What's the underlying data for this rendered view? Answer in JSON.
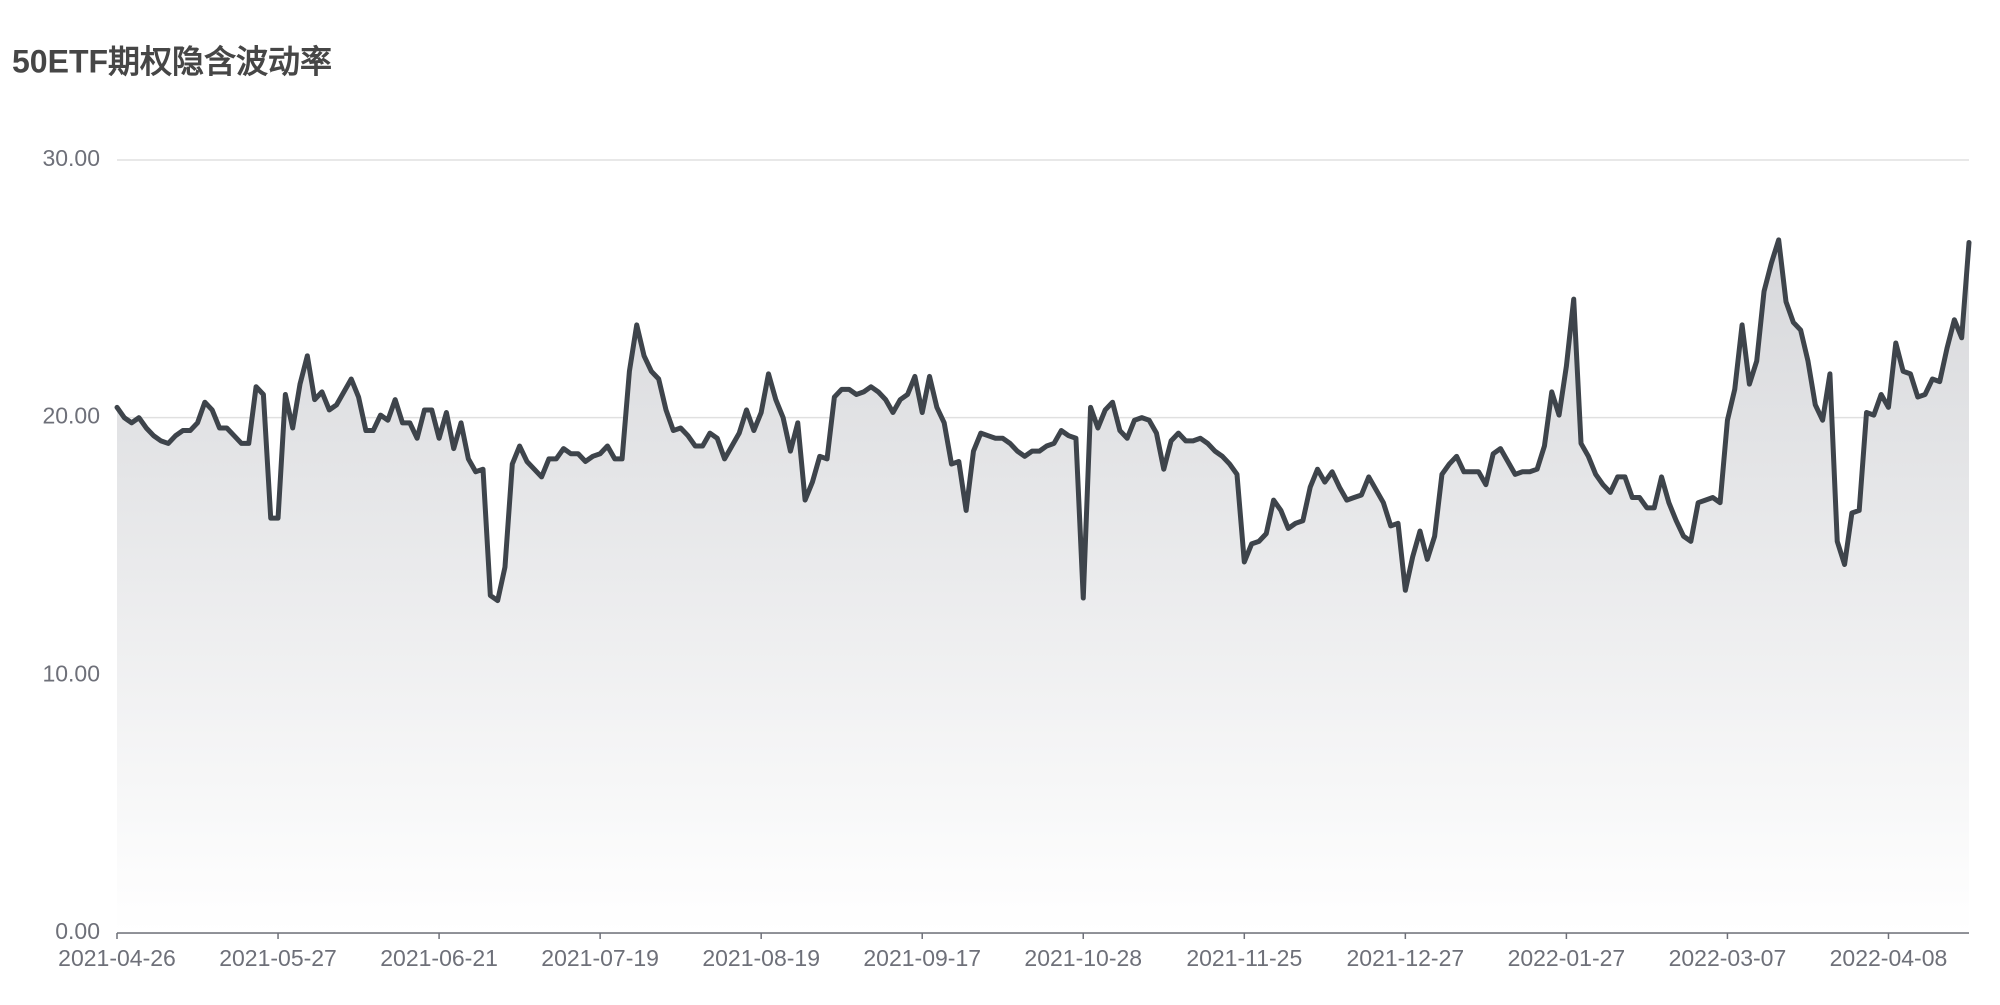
{
  "chart_data": {
    "type": "line",
    "title": "50ETF期权隐含波动率",
    "color": "#3e444b",
    "area": true,
    "grid": true,
    "ylim": [
      0,
      30
    ],
    "yticks": [
      {
        "value": 0,
        "label": "0.00"
      },
      {
        "value": 10,
        "label": "10.00"
      },
      {
        "value": 20,
        "label": "20.00"
      },
      {
        "value": 30,
        "label": "30.00"
      }
    ],
    "categories": [
      "2021-04-26",
      null,
      null,
      null,
      null,
      null,
      null,
      null,
      null,
      null,
      null,
      null,
      null,
      null,
      null,
      null,
      null,
      null,
      null,
      null,
      null,
      null,
      "2021-05-27",
      null,
      null,
      null,
      null,
      null,
      null,
      null,
      null,
      null,
      null,
      null,
      null,
      null,
      null,
      null,
      null,
      null,
      null,
      null,
      null,
      null,
      "2021-06-21",
      null,
      null,
      null,
      null,
      null,
      null,
      null,
      null,
      null,
      null,
      null,
      null,
      null,
      null,
      null,
      null,
      null,
      null,
      null,
      null,
      null,
      "2021-07-19",
      null,
      null,
      null,
      null,
      null,
      null,
      null,
      null,
      null,
      null,
      null,
      null,
      null,
      null,
      null,
      null,
      null,
      null,
      null,
      null,
      null,
      "2021-08-19",
      null,
      null,
      null,
      null,
      null,
      null,
      null,
      null,
      null,
      null,
      null,
      null,
      null,
      null,
      null,
      null,
      null,
      null,
      null,
      null,
      null,
      "2021-09-17",
      null,
      null,
      null,
      null,
      null,
      null,
      null,
      null,
      null,
      null,
      null,
      null,
      null,
      null,
      null,
      null,
      null,
      null,
      null,
      null,
      null,
      "2021-10-28",
      null,
      null,
      null,
      null,
      null,
      null,
      null,
      null,
      null,
      null,
      null,
      null,
      null,
      null,
      null,
      null,
      null,
      null,
      null,
      null,
      null,
      "2021-11-25",
      null,
      null,
      null,
      null,
      null,
      null,
      null,
      null,
      null,
      null,
      null,
      null,
      null,
      null,
      null,
      null,
      null,
      null,
      null,
      null,
      null,
      "2021-12-27",
      null,
      null,
      null,
      null,
      null,
      null,
      null,
      null,
      null,
      null,
      null,
      null,
      null,
      null,
      null,
      null,
      null,
      null,
      null,
      null,
      null,
      "2022-01-27",
      null,
      null,
      null,
      null,
      null,
      null,
      null,
      null,
      null,
      null,
      null,
      null,
      null,
      null,
      null,
      null,
      null,
      null,
      null,
      null,
      null,
      "2022-03-07",
      null,
      null,
      null,
      null,
      null,
      null,
      null,
      null,
      null,
      null,
      null,
      null,
      null,
      null,
      null,
      null,
      null,
      null,
      null,
      null,
      null,
      "2022-04-08",
      null,
      null,
      null,
      null,
      null,
      null,
      null,
      null,
      null,
      null,
      null
    ],
    "values": [
      20.4,
      20.0,
      19.8,
      20.0,
      19.6,
      19.3,
      19.1,
      19.0,
      19.3,
      19.5,
      19.5,
      19.8,
      20.6,
      20.3,
      19.6,
      19.6,
      19.3,
      19.0,
      19.0,
      21.2,
      20.9,
      16.1,
      16.1,
      20.9,
      19.6,
      21.3,
      22.4,
      20.7,
      21.0,
      20.3,
      20.5,
      21.0,
      21.5,
      20.8,
      19.5,
      19.5,
      20.1,
      19.9,
      20.7,
      19.8,
      19.8,
      19.2,
      20.3,
      20.3,
      19.2,
      20.2,
      18.8,
      19.8,
      18.4,
      17.9,
      18.0,
      13.1,
      12.9,
      14.2,
      18.2,
      18.9,
      18.3,
      18.0,
      17.7,
      18.4,
      18.4,
      18.8,
      18.6,
      18.6,
      18.3,
      18.5,
      18.6,
      18.9,
      18.4,
      18.4,
      21.8,
      23.6,
      22.4,
      21.8,
      21.5,
      20.3,
      19.5,
      19.6,
      19.3,
      18.9,
      18.9,
      19.4,
      19.2,
      18.4,
      18.9,
      19.4,
      20.3,
      19.5,
      20.2,
      21.7,
      20.7,
      20.0,
      18.7,
      19.8,
      16.8,
      17.5,
      18.5,
      18.4,
      20.8,
      21.1,
      21.1,
      20.9,
      21.0,
      21.2,
      21.0,
      20.7,
      20.2,
      20.7,
      20.9,
      21.6,
      20.2,
      21.6,
      20.4,
      19.8,
      18.2,
      18.3,
      16.4,
      18.7,
      19.4,
      19.3,
      19.2,
      19.2,
      19.0,
      18.7,
      18.5,
      18.7,
      18.7,
      18.9,
      19.0,
      19.5,
      19.3,
      19.2,
      13.0,
      20.4,
      19.6,
      20.3,
      20.6,
      19.5,
      19.2,
      19.9,
      20.0,
      19.9,
      19.4,
      18.0,
      19.1,
      19.4,
      19.1,
      19.1,
      19.2,
      19.0,
      18.7,
      18.5,
      18.2,
      17.8,
      14.4,
      15.1,
      15.2,
      15.5,
      16.8,
      16.4,
      15.7,
      15.9,
      16.0,
      17.3,
      18.0,
      17.5,
      17.9,
      17.3,
      16.8,
      16.9,
      17.0,
      17.7,
      17.2,
      16.7,
      15.8,
      15.9,
      13.3,
      14.6,
      15.6,
      14.5,
      15.4,
      17.8,
      18.2,
      18.5,
      17.9,
      17.9,
      17.9,
      17.4,
      18.6,
      18.8,
      18.3,
      17.8,
      17.9,
      17.9,
      18.0,
      18.9,
      21.0,
      20.1,
      22.0,
      24.6,
      19.0,
      18.5,
      17.8,
      17.4,
      17.1,
      17.7,
      17.7,
      16.9,
      16.9,
      16.5,
      16.5,
      17.7,
      16.7,
      16.0,
      15.4,
      15.2,
      16.7,
      16.8,
      16.9,
      16.7,
      19.9,
      21.1,
      23.6,
      21.3,
      22.2,
      24.9,
      26.0,
      26.9,
      24.5,
      23.7,
      23.4,
      22.2,
      20.5,
      19.9,
      21.7,
      15.2,
      14.3,
      16.3,
      16.4,
      20.2,
      20.1,
      20.9,
      20.4,
      22.9,
      21.8,
      21.7,
      20.8,
      20.9,
      21.5,
      21.4,
      22.7,
      23.8,
      23.1,
      26.8
    ]
  }
}
